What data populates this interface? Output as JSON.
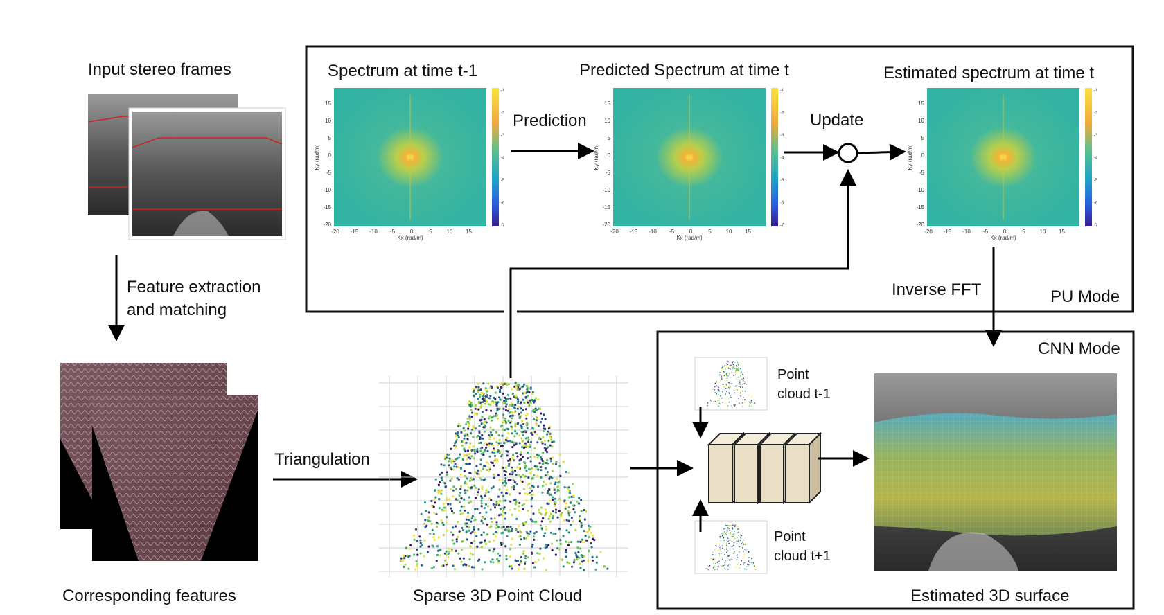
{
  "labels": {
    "input_frames": "Input stereo frames",
    "feature_extraction_line1": "Feature extraction",
    "feature_extraction_line2": "and matching",
    "corresponding_features": "Corresponding features",
    "triangulation": "Triangulation",
    "sparse_cloud": "Sparse 3D Point Cloud",
    "spectrum_prev": "Spectrum at time t-1",
    "spectrum_pred": "Predicted Spectrum at time t",
    "spectrum_est": "Estimated spectrum at time t",
    "prediction": "Prediction",
    "update": "Update",
    "inverse_fft": "Inverse FFT",
    "pu_mode": "PU Mode",
    "cnn_mode": "CNN Mode",
    "cloud_prev_line1": "Point",
    "cloud_prev_line2": "cloud t-1",
    "cloud_next_line1": "Point",
    "cloud_next_line2": "cloud t+1",
    "estimated_surface": "Estimated 3D surface"
  },
  "spectrum_axes": {
    "xlabel": "Kx (rad/m)",
    "ylabel": "Ky (rad/m)",
    "xticks": [
      "-20",
      "-15",
      "-10",
      "-5",
      "0",
      "5",
      "10",
      "15"
    ],
    "yticks": [
      "15",
      "10",
      "5",
      "0",
      "-5",
      "-10",
      "-15",
      "-20"
    ],
    "colorbar_ticks": [
      "-1",
      "-2",
      "-3",
      "-4",
      "-5",
      "-6",
      "-7"
    ]
  },
  "colors": {
    "arrow": "#000000",
    "frame_border": "#1a1a1a",
    "feature_line": "#cc2222",
    "spectrum_bg": "#3bb39a",
    "spectrum_core": "#f2d23a",
    "cnn_block": "#e9dfc6"
  }
}
